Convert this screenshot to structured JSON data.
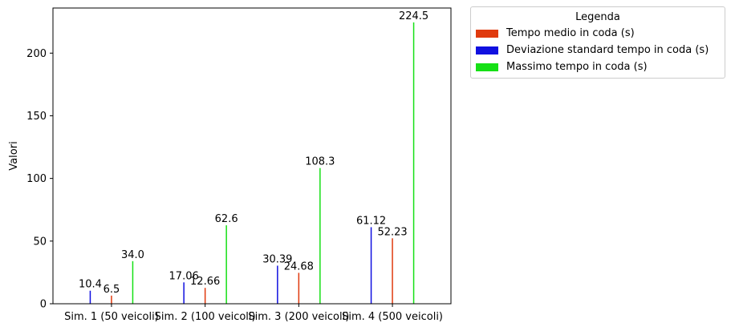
{
  "chart_data": {
    "type": "bar",
    "categories": [
      "Sim. 1 (50 veicoli)",
      "Sim. 2 (100 veicoli)",
      "Sim. 3 (200 veicoli)",
      "Sim. 4 (500 veicoli)"
    ],
    "series": [
      {
        "name": "Tempo medio in coda (s)",
        "color": "#e03a0e",
        "values": [
          6.5,
          12.66,
          24.68,
          52.23
        ],
        "labels": [
          "6.5",
          "12.66",
          "24.68",
          "52.23"
        ]
      },
      {
        "name": "Deviazione standard tempo in coda (s)",
        "color": "#1010e0",
        "values": [
          10.4,
          17.06,
          30.39,
          61.12
        ],
        "labels": [
          "10.4",
          "17.06",
          "30.39",
          "61.12"
        ]
      },
      {
        "name": "Massimo tempo in coda (s)",
        "color": "#16e016",
        "values": [
          34.0,
          62.6,
          108.3,
          224.5
        ],
        "labels": [
          "34.0",
          "62.6",
          "108.3",
          "224.5"
        ]
      }
    ],
    "xlabel": "",
    "ylabel": "Valori",
    "ylim": [
      0,
      236
    ],
    "yticks": [
      0,
      50,
      100,
      150,
      200
    ],
    "legend_title": "Legenda",
    "legend_position": "outside-right-top",
    "grid": false
  }
}
